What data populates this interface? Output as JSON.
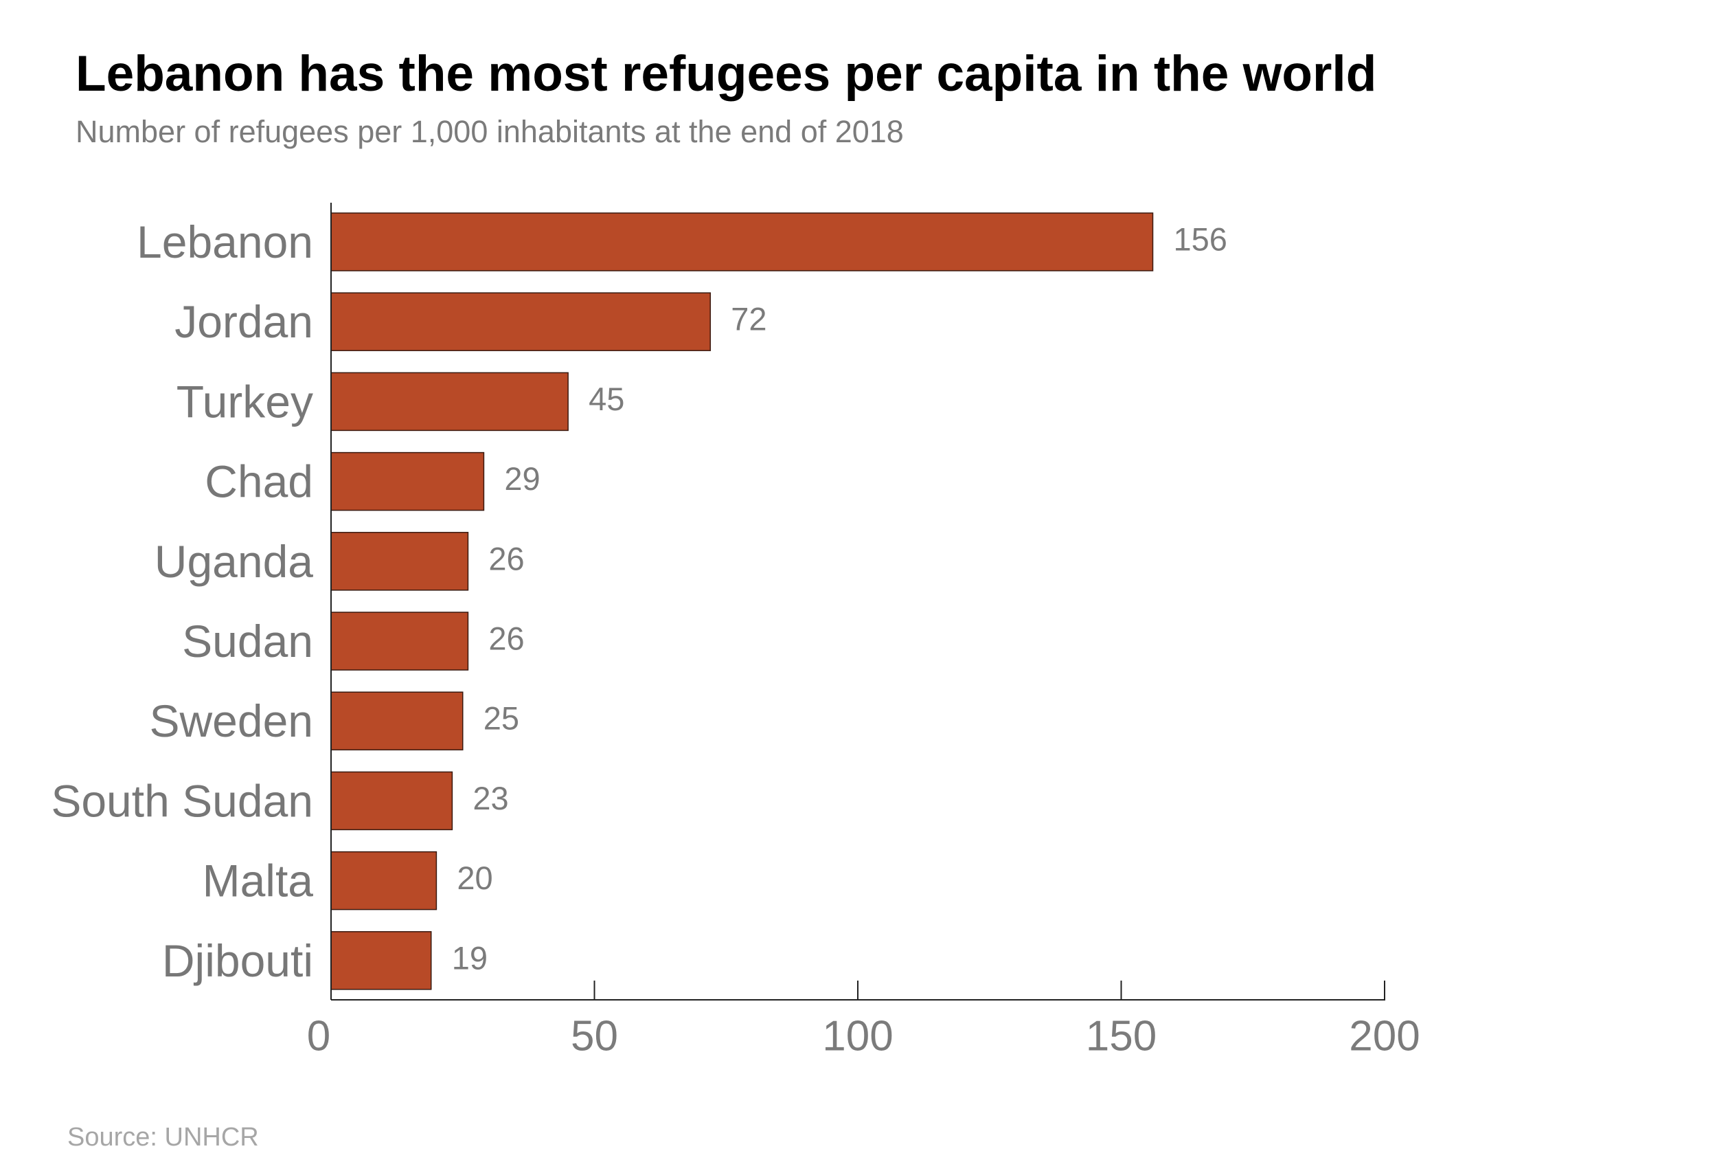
{
  "title": "Lebanon has the most refugees per capita in the world",
  "subtitle": "Number of refugees per 1,000 inhabitants at the end of 2018",
  "source": "Source: UNHCR",
  "colors": {
    "bar": "#b84a27",
    "bar_stroke": "#3a1a10",
    "axis": "#222222"
  },
  "chart_data": {
    "type": "bar",
    "orientation": "horizontal",
    "categories": [
      "Lebanon",
      "Jordan",
      "Turkey",
      "Chad",
      "Uganda",
      "Sudan",
      "Sweden",
      "South Sudan",
      "Malta",
      "Djibouti"
    ],
    "values": [
      156,
      72,
      45,
      29,
      26,
      26,
      25,
      23,
      20,
      19
    ],
    "value_labels": [
      "156",
      "72",
      "45",
      "29",
      "26",
      "26",
      "25",
      "23",
      "20",
      "19"
    ],
    "xlim": [
      0,
      200
    ],
    "xticks": [
      0,
      50,
      100,
      150,
      200
    ],
    "xtick_labels": [
      "0",
      "50",
      "100",
      "150",
      "200"
    ],
    "grid": false,
    "legend": "none"
  }
}
